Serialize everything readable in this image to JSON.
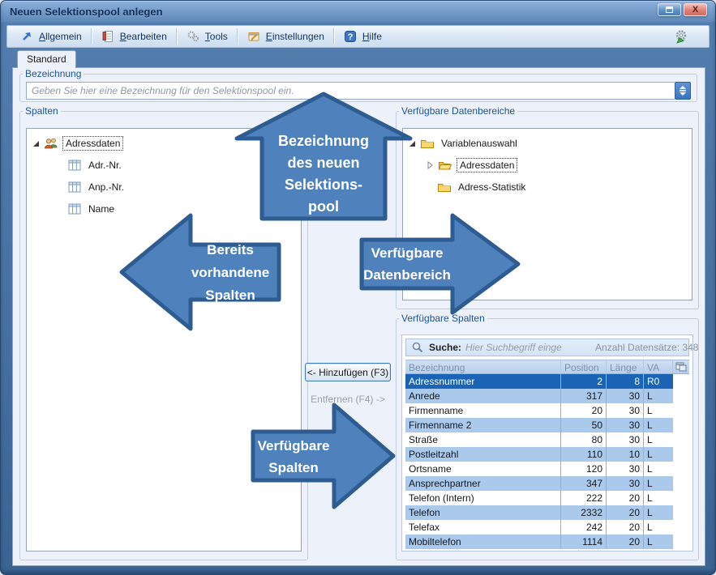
{
  "window": {
    "title": "Neuen Selektionspool anlegen"
  },
  "toolbar": {
    "items": [
      {
        "label": "Allgemein"
      },
      {
        "label": "Bearbeiten"
      },
      {
        "label": "Tools"
      },
      {
        "label": "Einstellungen"
      },
      {
        "label": "Hilfe"
      }
    ]
  },
  "tabs": {
    "standard": "Standard"
  },
  "bezeichnung": {
    "label": "Bezeichnung",
    "placeholder": "Geben Sie hier eine Bezeichnung für den Selektionspool ein."
  },
  "spalten": {
    "label": "Spalten",
    "root": "Adressdaten",
    "children": [
      "Adr.-Nr.",
      "Anp.-Nr.",
      "Name"
    ]
  },
  "datenbereiche": {
    "label": "Verfügbare Datenbereiche",
    "root": "Variablenauswahl",
    "children": [
      "Adressdaten",
      "Adress-Statistik"
    ]
  },
  "verfuegbare_spalten": {
    "label": "Verfügbare Spalten",
    "search_label": "Suche:",
    "search_placeholder": "Hier Suchbegriff einge",
    "count_text": "Anzahl Datensätze: 348",
    "columns": [
      "Bezeichnung",
      "Position",
      "Länge",
      "VA"
    ],
    "selected_row": 0,
    "rows": [
      [
        "Adressnummer",
        "2",
        "8",
        "R0"
      ],
      [
        "Anrede",
        "317",
        "30",
        "L"
      ],
      [
        "Firmenname",
        "20",
        "30",
        "L"
      ],
      [
        "Firmenname 2",
        "50",
        "30",
        "L"
      ],
      [
        "Straße",
        "80",
        "30",
        "L"
      ],
      [
        "Postleitzahl",
        "110",
        "10",
        "L"
      ],
      [
        "Ortsname",
        "120",
        "30",
        "L"
      ],
      [
        "Ansprechpartner",
        "347",
        "30",
        "L"
      ],
      [
        "Telefon (Intern)",
        "222",
        "20",
        "L"
      ],
      [
        "Telefon",
        "2332",
        "20",
        "L"
      ],
      [
        "Telefax",
        "242",
        "20",
        "L"
      ],
      [
        "Mobiltelefon",
        "1114",
        "20",
        "L"
      ]
    ]
  },
  "transfer_buttons": {
    "add": "<- Hinzufügen (F3)",
    "remove": "Entfernen (F4) ->"
  },
  "annotations": {
    "top": [
      "Bezeichnung",
      "des neuen",
      "Selektions-",
      "pool"
    ],
    "left": [
      "Bereits",
      "vorhandene",
      "Spalten"
    ],
    "right": [
      "Verfügbare",
      "Datenbereich"
    ],
    "bottom": [
      "Verfügbare",
      "Spalten"
    ]
  },
  "colors": {
    "arrow_fill": "#4f81bd",
    "arrow_border": "#2e5c90",
    "selected_row_bg": "#1a63b5",
    "stripe_bg": "#abc9eb",
    "titlebar_text": "#132f5c",
    "group_label": "#1e53a0"
  }
}
